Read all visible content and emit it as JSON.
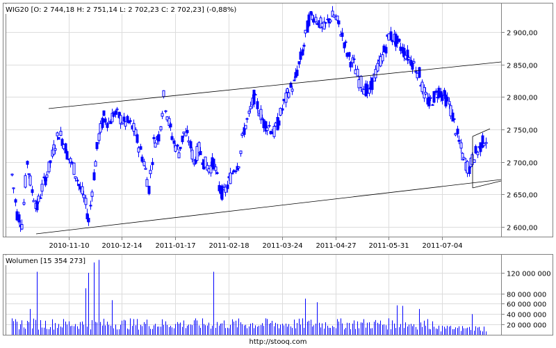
{
  "chart_data": [
    {
      "type": "candlestick",
      "legend": "WIG20 [O: 2 744,18  H: 2 751,14  L: 2 702,23  C: 2 702,23] (-0,88%)",
      "x_ticks": [
        "2010-11-10",
        "2010-12-14",
        "2011-01-17",
        "2011-02-18",
        "2011-03-24",
        "2011-04-27",
        "2011-05-31",
        "2011-07-04"
      ],
      "y_ticks": [
        "2 600,00",
        "2 650,00",
        "2 700,00",
        "2 750,00",
        "2 800,00",
        "2 850,00",
        "2 900,00"
      ],
      "ylim": [
        2585,
        2945
      ],
      "grid": true,
      "up_color": "#0000ff",
      "down_color": "#0000ff",
      "anchors": [
        [
          0,
          2680
        ],
        [
          3,
          2620
        ],
        [
          6,
          2605
        ],
        [
          9,
          2700
        ],
        [
          12,
          2655
        ],
        [
          15,
          2630
        ],
        [
          18,
          2660
        ],
        [
          22,
          2690
        ],
        [
          25,
          2720
        ],
        [
          28,
          2745
        ],
        [
          31,
          2730
        ],
        [
          34,
          2705
        ],
        [
          37,
          2690
        ],
        [
          40,
          2665
        ],
        [
          43,
          2645
        ],
        [
          46,
          2610
        ],
        [
          49,
          2680
        ],
        [
          52,
          2740
        ],
        [
          55,
          2770
        ],
        [
          58,
          2760
        ],
        [
          61,
          2775
        ],
        [
          64,
          2770
        ],
        [
          67,
          2760
        ],
        [
          70,
          2760
        ],
        [
          73,
          2750
        ],
        [
          76,
          2725
        ],
        [
          79,
          2700
        ],
        [
          82,
          2660
        ],
        [
          85,
          2730
        ],
        [
          88,
          2740
        ],
        [
          91,
          2800
        ],
        [
          94,
          2760
        ],
        [
          97,
          2730
        ],
        [
          100,
          2715
        ],
        [
          103,
          2745
        ],
        [
          106,
          2735
        ],
        [
          109,
          2700
        ],
        [
          112,
          2720
        ],
        [
          115,
          2700
        ],
        [
          118,
          2690
        ],
        [
          121,
          2700
        ],
        [
          124,
          2660
        ],
        [
          127,
          2650
        ],
        [
          130,
          2670
        ],
        [
          133,
          2690
        ],
        [
          136,
          2700
        ],
        [
          139,
          2750
        ],
        [
          142,
          2770
        ],
        [
          145,
          2800
        ],
        [
          148,
          2780
        ],
        [
          151,
          2760
        ],
        [
          154,
          2755
        ],
        [
          157,
          2745
        ],
        [
          160,
          2765
        ],
        [
          163,
          2790
        ],
        [
          166,
          2810
        ],
        [
          169,
          2820
        ],
        [
          172,
          2850
        ],
        [
          175,
          2880
        ],
        [
          178,
          2920
        ],
        [
          181,
          2925
        ],
        [
          184,
          2915
        ],
        [
          187,
          2905
        ],
        [
          190,
          2920
        ],
        [
          193,
          2925
        ],
        [
          196,
          2910
        ],
        [
          199,
          2885
        ],
        [
          202,
          2860
        ],
        [
          205,
          2850
        ],
        [
          208,
          2825
        ],
        [
          211,
          2815
        ],
        [
          214,
          2805
        ],
        [
          217,
          2830
        ],
        [
          220,
          2850
        ],
        [
          223,
          2870
        ],
        [
          226,
          2895
        ],
        [
          229,
          2890
        ],
        [
          232,
          2880
        ],
        [
          235,
          2870
        ],
        [
          238,
          2860
        ],
        [
          241,
          2850
        ],
        [
          244,
          2835
        ],
        [
          247,
          2805
        ],
        [
          250,
          2790
        ],
        [
          253,
          2800
        ],
        [
          256,
          2810
        ],
        [
          259,
          2800
        ],
        [
          262,
          2790
        ],
        [
          265,
          2760
        ],
        [
          268,
          2730
        ],
        [
          271,
          2700
        ],
        [
          274,
          2690
        ],
        [
          277,
          2710
        ],
        [
          280,
          2720
        ],
        [
          283,
          2735
        ]
      ]
    },
    {
      "type": "bar",
      "legend": "Wolumen [15 354 273]",
      "y_ticks": [
        "20 000 000",
        "40 000 000",
        "60 000 000",
        "80 000 000",
        "120 000 000"
      ],
      "ylim": [
        0,
        155000000
      ],
      "spikes": [
        [
          11,
          50
        ],
        [
          15,
          122
        ],
        [
          44,
          90
        ],
        [
          46,
          120
        ],
        [
          49,
          140
        ],
        [
          52,
          145
        ],
        [
          60,
          67
        ],
        [
          121,
          122
        ],
        [
          176,
          70
        ],
        [
          183,
          63
        ],
        [
          231,
          57
        ],
        [
          234,
          56
        ],
        [
          244,
          50
        ],
        [
          276,
          40
        ]
      ]
    }
  ],
  "footer": {
    "url": "http://stooq.com"
  },
  "colors": {
    "candle": "#0000ff",
    "grid": "#dcdcdc",
    "frame": "#808080",
    "line": "#000000"
  }
}
